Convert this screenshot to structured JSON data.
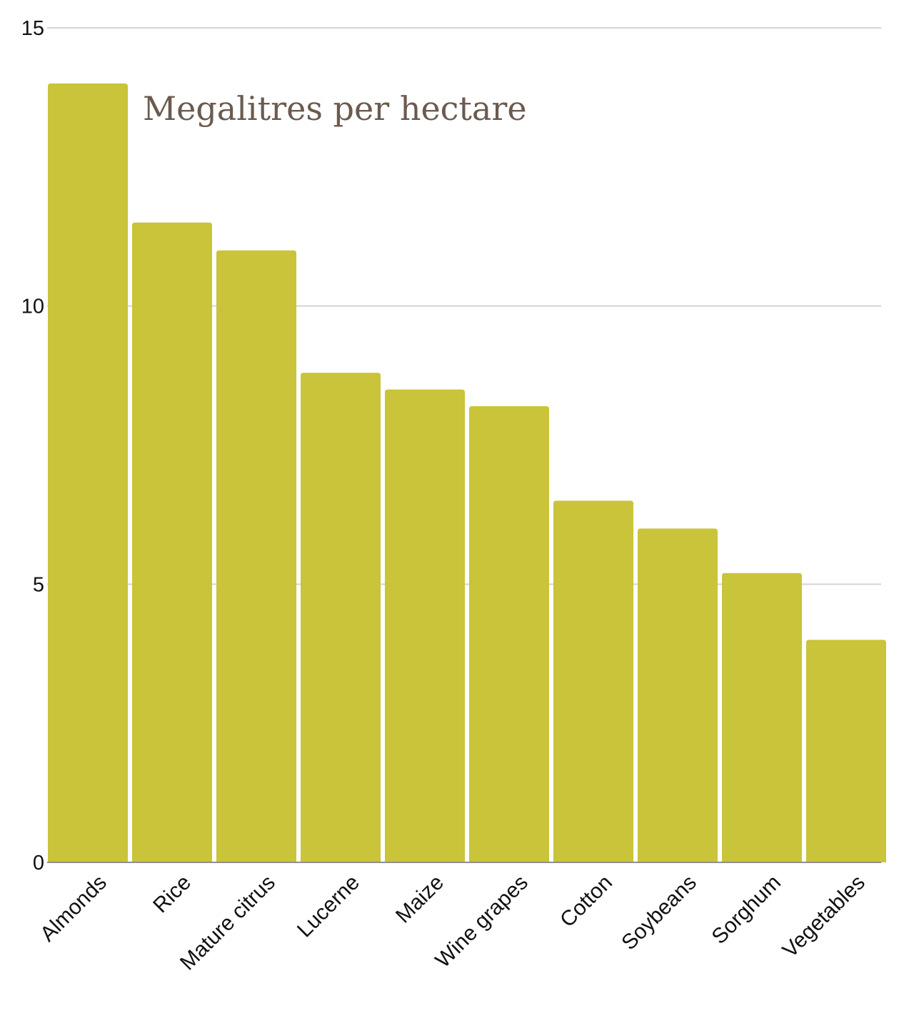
{
  "chart_data": {
    "type": "bar",
    "title": "Megalitres per hectare",
    "xlabel": "",
    "ylabel": "",
    "ylim": [
      0,
      15
    ],
    "yticks": [
      0,
      5,
      10,
      15
    ],
    "grid": true,
    "legend": "none",
    "bar_color": "#c9c43a",
    "categories": [
      "Almonds",
      "Rice",
      "Mature citrus",
      "Lucerne",
      "Maize",
      "Wine grapes",
      "Cotton",
      "Soybeans",
      "Sorghum",
      "Vegetables"
    ],
    "values": [
      14.0,
      11.5,
      11.0,
      8.8,
      8.5,
      8.2,
      6.5,
      6.0,
      5.2,
      4.0
    ]
  }
}
